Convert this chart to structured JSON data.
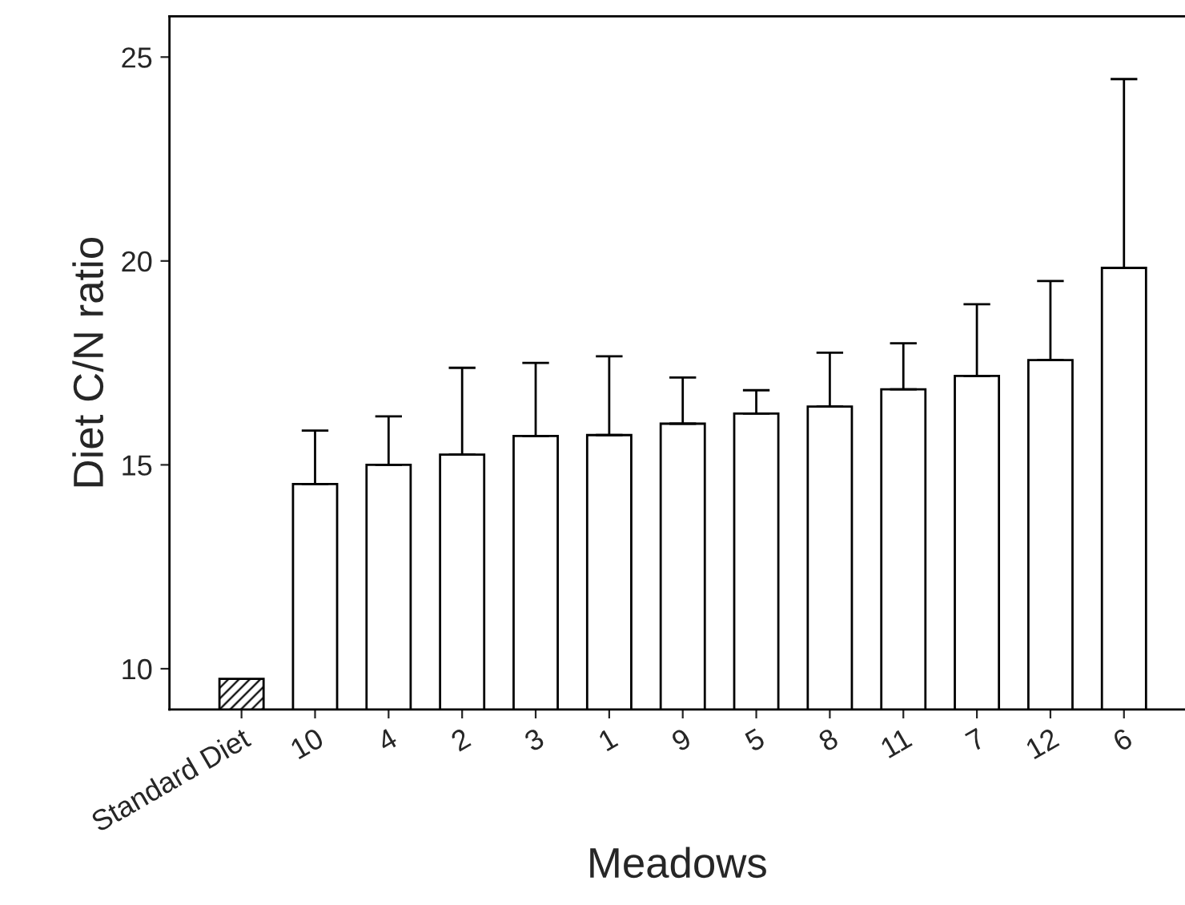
{
  "chart_data": {
    "type": "bar",
    "xlabel": "Meadows",
    "ylabel": "Diet C/N ratio",
    "categories": [
      "Standard Diet",
      "10",
      "4",
      "2",
      "3",
      "1",
      "9",
      "5",
      "8",
      "11",
      "7",
      "12",
      "6"
    ],
    "values": [
      9.75,
      14.53,
      15.0,
      15.25,
      15.71,
      15.73,
      16.01,
      16.26,
      16.43,
      16.85,
      17.18,
      17.57,
      19.83
    ],
    "errors": [
      null,
      [
        14.53,
        15.84
      ],
      [
        15.0,
        16.19
      ],
      [
        15.25,
        17.38
      ],
      [
        15.71,
        17.5
      ],
      [
        15.73,
        17.66
      ],
      [
        16.01,
        17.14
      ],
      [
        16.26,
        16.83
      ],
      [
        16.43,
        17.75
      ],
      [
        16.85,
        17.98
      ],
      [
        17.18,
        18.94
      ],
      [
        17.57,
        19.51
      ],
      [
        19.83,
        24.46
      ]
    ],
    "colors": [
      "#000000",
      "#ffffff",
      "#ffffff",
      "#ffffff",
      "#ffffff",
      "#ffffff",
      "#ffffff",
      "#ffffff",
      "#ffffff",
      "#ffffff",
      "#ffffff",
      "#ffffff",
      "#ffffff"
    ],
    "ylim": [
      9,
      26
    ],
    "yticks": [
      10,
      15,
      20,
      25
    ],
    "grid": false,
    "legend": false
  }
}
